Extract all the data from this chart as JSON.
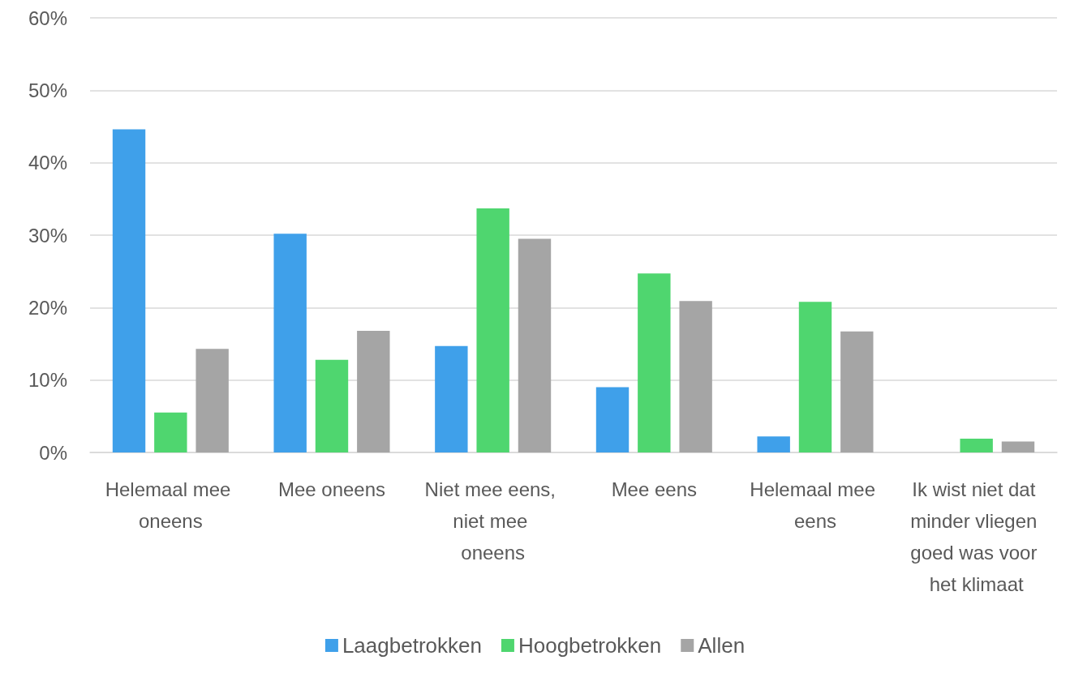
{
  "chart_data": {
    "type": "bar",
    "categories": [
      "Helemaal mee oneens",
      "Mee oneens",
      "Niet mee eens, niet mee oneens",
      "Mee eens",
      "Helemaal mee eens",
      "Ik wist niet dat minder vliegen goed was voor het klimaat"
    ],
    "series": [
      {
        "name": "Laagbetrokken",
        "color": "#3fa0ea",
        "values": [
          44.6,
          30.2,
          14.7,
          9.0,
          2.2,
          0
        ]
      },
      {
        "name": "Hoogbetrokken",
        "color": "#4fd66f",
        "values": [
          5.5,
          12.8,
          33.7,
          24.7,
          20.8,
          1.9
        ]
      },
      {
        "name": "Allen",
        "color": "#a5a5a5",
        "values": [
          14.3,
          16.8,
          29.5,
          20.9,
          16.7,
          1.5
        ]
      }
    ],
    "ylim": [
      0,
      60
    ],
    "yticks": [
      {
        "value": 0,
        "label": "0%"
      },
      {
        "value": 10,
        "label": "10%"
      },
      {
        "value": 20,
        "label": "20%"
      },
      {
        "value": 30,
        "label": "30%"
      },
      {
        "value": 40,
        "label": "40%"
      },
      {
        "value": 50,
        "label": "50%"
      },
      {
        "value": 60,
        "label": "60%"
      }
    ],
    "grid": "y",
    "legend": "bottom"
  }
}
